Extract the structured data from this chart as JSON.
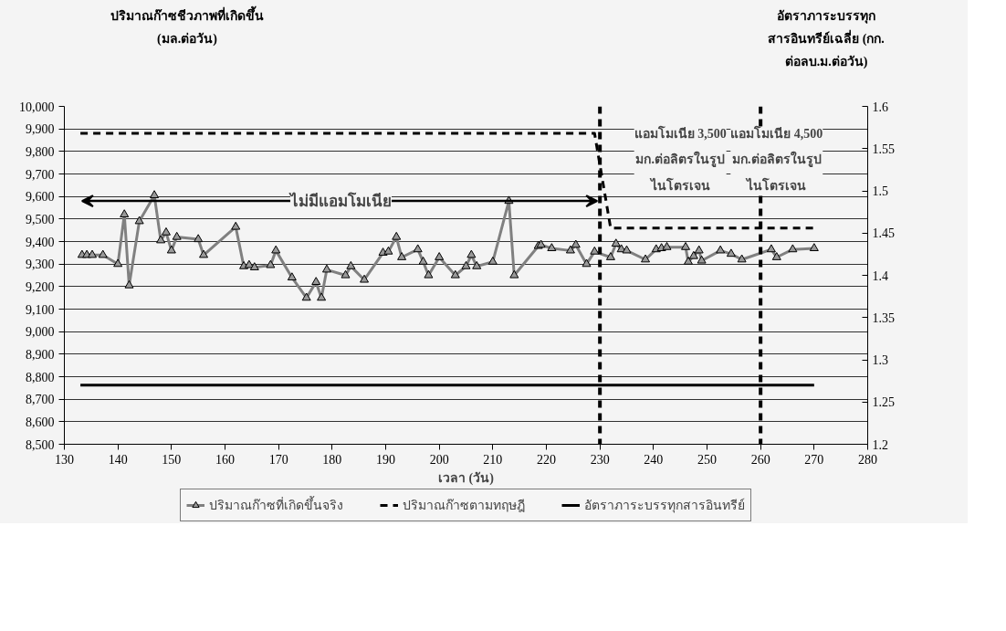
{
  "chart_data": {
    "type": "line",
    "xlabel": "เวลา (วัน)",
    "ylabel": "ปริมาณก๊าซชีวภาพที่เกิดขึ้น\n(มล.ต่อวัน)",
    "y2label": "อัตราภาระบรรทุก\nสารอินทรีย์เฉลี่ย (กก.\nต่อลบ.ม.ต่อวัน)",
    "xlim": [
      130,
      280
    ],
    "xticks": [
      130,
      140,
      150,
      160,
      170,
      180,
      190,
      200,
      210,
      220,
      230,
      240,
      250,
      260,
      270,
      280
    ],
    "ylim": [
      8500,
      10000
    ],
    "yticks": [
      {
        "value": 8500,
        "label": "8,500"
      },
      {
        "value": 8600,
        "label": "8,600"
      },
      {
        "value": 8700,
        "label": "8,700"
      },
      {
        "value": 8800,
        "label": "8,800"
      },
      {
        "value": 8900,
        "label": "8,900"
      },
      {
        "value": 9000,
        "label": "9,000"
      },
      {
        "value": 9100,
        "label": "9,100"
      },
      {
        "value": 9200,
        "label": "9,200"
      },
      {
        "value": 9300,
        "label": "9,300"
      },
      {
        "value": 9400,
        "label": "9,400"
      },
      {
        "value": 9500,
        "label": "9,500"
      },
      {
        "value": 9600,
        "label": "9,600"
      },
      {
        "value": 9700,
        "label": "9,700"
      },
      {
        "value": 9800,
        "label": "9,800"
      },
      {
        "value": 9900,
        "label": "9,900"
      },
      {
        "value": 10000,
        "label": "10,000"
      }
    ],
    "y2lim": [
      1.2,
      1.6
    ],
    "y2ticks": [
      1.2,
      1.25,
      1.3,
      1.35,
      1.4,
      1.45,
      1.5,
      1.55,
      1.6
    ],
    "grid": "y",
    "legend": "bottom",
    "series": [
      {
        "name": "ปริมาณก๊าซที่เกิดขึ้นจริง",
        "color": "#808080",
        "marker": "triangle",
        "line_style": "solid",
        "x": [
          133.3,
          134.2,
          135.2,
          137.2,
          140,
          141.2,
          142.1,
          144,
          146.8,
          148,
          149,
          150,
          151,
          155,
          156,
          162,
          163.5,
          164.5,
          165.5,
          168.5,
          169.5,
          172.5,
          175.2,
          177,
          178,
          179,
          182.5,
          183.5,
          186,
          189.5,
          190.5,
          192,
          193,
          196,
          197,
          198,
          200,
          203,
          205,
          206,
          207,
          210,
          213,
          214,
          218.5,
          219,
          221,
          224.5,
          225.5,
          227.5,
          229,
          232,
          233,
          234,
          235,
          238.5,
          240.5,
          241.5,
          242.5,
          246,
          246.5,
          247.5,
          248.5,
          249,
          252.5,
          254.5,
          256.5,
          262,
          263,
          266,
          270
        ],
        "values": [
          9340,
          9340,
          9340,
          9340,
          9300,
          9520,
          9205,
          9490,
          9605,
          9405,
          9440,
          9360,
          9420,
          9410,
          9340,
          9465,
          9290,
          9295,
          9285,
          9295,
          9360,
          9240,
          9150,
          9220,
          9150,
          9275,
          9250,
          9290,
          9230,
          9350,
          9355,
          9420,
          9330,
          9365,
          9310,
          9250,
          9330,
          9250,
          9290,
          9340,
          9290,
          9310,
          9580,
          9250,
          9380,
          9385,
          9370,
          9360,
          9385,
          9300,
          9355,
          9330,
          9390,
          9365,
          9360,
          9320,
          9365,
          9370,
          9375,
          9375,
          9310,
          9335,
          9360,
          9315,
          9360,
          9345,
          9320,
          9365,
          9330,
          9365,
          9370
        ]
      },
      {
        "name": "ปริมาณก๊าซตามทฤษฎี",
        "color": "#000000",
        "marker": "none",
        "line_style": "dashed",
        "x": [
          133,
          229,
          232,
          270
        ],
        "values": [
          9880,
          9880,
          9460,
          9460
        ]
      },
      {
        "name": "อัตราภาระบรรทุกสารอินทรีย์",
        "color": "#000000",
        "marker": "none",
        "line_style": "solid",
        "axis": "y2",
        "x": [
          133,
          270
        ],
        "values": [
          1.27,
          1.27
        ]
      }
    ],
    "ref_lines": [
      {
        "axis": "x",
        "value": 230,
        "color": "#000000",
        "line_style": "dashed"
      },
      {
        "axis": "x",
        "value": 260,
        "color": "#000000",
        "line_style": "dashed"
      }
    ],
    "annotations": [
      "ไม่มีแอมโมเนีย",
      "แอมโมเนีย 3,500\nมก.ต่อลิตรในรูป\nไนโตรเจน",
      "แอมโมเนีย 4,500\nมก.ต่อลิตรในรูป\nไนโตรเจน"
    ]
  }
}
